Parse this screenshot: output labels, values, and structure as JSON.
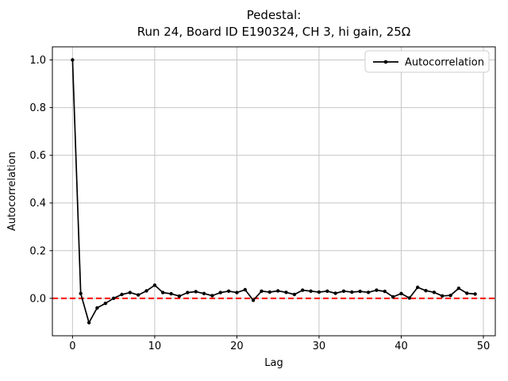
{
  "chart_data": {
    "type": "line",
    "title": "Pedestal:\nRun 24, Board ID E190324, CH 3, hi gain, 25Ω",
    "title_lines": [
      "Pedestal:",
      "Run 24, Board ID E190324, CH 3, hi gain, 25Ω"
    ],
    "xlabel": "Lag",
    "ylabel": "Autocorrelation",
    "legend": {
      "position": "upper right",
      "entries": [
        {
          "label": "Autocorrelation",
          "color": "#000000",
          "marker": "circle",
          "line_style": "solid"
        }
      ]
    },
    "x": [
      0,
      1,
      2,
      3,
      4,
      5,
      6,
      7,
      8,
      9,
      10,
      11,
      12,
      13,
      14,
      15,
      16,
      17,
      18,
      19,
      20,
      21,
      22,
      23,
      24,
      25,
      26,
      27,
      28,
      29,
      30,
      31,
      32,
      33,
      34,
      35,
      36,
      37,
      38,
      39,
      40,
      41,
      42,
      43,
      44,
      45,
      46,
      47,
      48,
      49
    ],
    "series": [
      {
        "name": "Autocorrelation",
        "color": "#000000",
        "marker": "circle",
        "values": [
          1.0,
          0.02,
          -0.102,
          -0.04,
          -0.021,
          0.0,
          0.016,
          0.024,
          0.014,
          0.031,
          0.055,
          0.024,
          0.019,
          0.009,
          0.024,
          0.028,
          0.02,
          0.011,
          0.024,
          0.03,
          0.024,
          0.036,
          -0.008,
          0.03,
          0.026,
          0.031,
          0.025,
          0.016,
          0.034,
          0.03,
          0.026,
          0.03,
          0.021,
          0.03,
          0.026,
          0.029,
          0.025,
          0.034,
          0.029,
          0.006,
          0.02,
          0.001,
          0.046,
          0.032,
          0.025,
          0.01,
          0.012,
          0.042,
          0.021,
          0.018
        ]
      }
    ],
    "reference_lines": [
      {
        "axis": "y",
        "value": 0,
        "color": "#ff0000",
        "style": "dashed"
      }
    ],
    "xlim": [
      -2.45,
      51.45
    ],
    "ylim": [
      -0.157,
      1.055
    ],
    "xticks": [
      0,
      10,
      20,
      30,
      40,
      50
    ],
    "xtick_labels": [
      "0",
      "10",
      "20",
      "30",
      "40",
      "50"
    ],
    "yticks": [
      0.0,
      0.2,
      0.4,
      0.6,
      0.8,
      1.0
    ],
    "ytick_labels": [
      "0.0",
      "0.2",
      "0.4",
      "0.6",
      "0.8",
      "1.0"
    ],
    "grid": true,
    "colors": {
      "background": "#ffffff",
      "grid": "#c6c6c6",
      "spine": "#000000",
      "text": "#000000",
      "series": "#000000",
      "zero_line": "#ff0000",
      "legend_border": "#cccccc",
      "legend_background": "#ffffff"
    }
  }
}
